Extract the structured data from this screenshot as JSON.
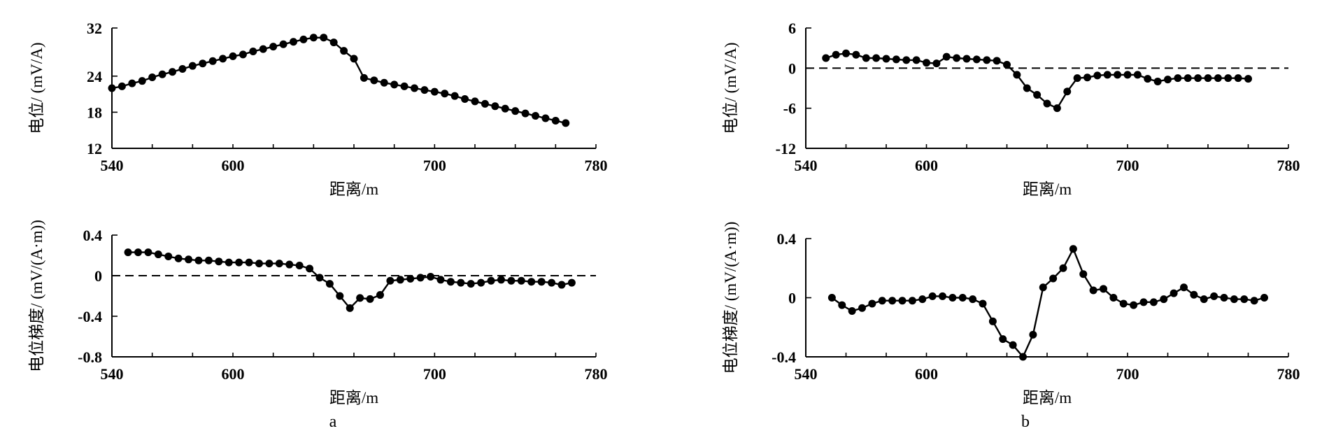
{
  "figure": {
    "panel_labels": [
      "a",
      "b"
    ]
  },
  "chart_data": [
    {
      "id": "a-potential",
      "type": "line",
      "xlabel": "距离/m",
      "ylabel": "电位/ (mV/A)",
      "xlim": [
        540,
        780
      ],
      "ylim": [
        12,
        32
      ],
      "xticks": [
        540,
        600,
        700,
        780
      ],
      "yticks": [
        12,
        18,
        24,
        32
      ],
      "zero_line": false,
      "series": [
        {
          "name": "电位",
          "x": [
            540,
            545,
            550,
            555,
            560,
            565,
            570,
            575,
            580,
            585,
            590,
            595,
            600,
            605,
            610,
            615,
            620,
            625,
            630,
            635,
            640,
            645,
            650,
            655,
            660,
            665,
            670,
            675,
            680,
            685,
            690,
            695,
            700,
            705,
            710,
            715,
            720,
            725,
            730,
            735,
            740,
            745,
            750,
            755,
            760,
            765
          ],
          "y": [
            22.0,
            22.3,
            22.8,
            23.2,
            23.8,
            24.3,
            24.7,
            25.2,
            25.7,
            26.1,
            26.5,
            26.9,
            27.3,
            27.6,
            28.1,
            28.5,
            28.9,
            29.3,
            29.7,
            30.1,
            30.4,
            30.4,
            29.6,
            28.2,
            26.9,
            23.7,
            23.3,
            22.9,
            22.6,
            22.3,
            22.0,
            21.7,
            21.4,
            21.1,
            20.7,
            20.2,
            19.8,
            19.4,
            19.0,
            18.6,
            18.2,
            17.8,
            17.4,
            17.0,
            16.6,
            16.2
          ]
        }
      ]
    },
    {
      "id": "a-gradient",
      "type": "line",
      "xlabel": "距离/m",
      "ylabel": "电位梯度/ (mV/(A·m))",
      "xlim": [
        540,
        780
      ],
      "ylim": [
        -0.8,
        0.4
      ],
      "xticks": [
        540,
        600,
        700,
        780
      ],
      "yticks": [
        -0.8,
        -0.4,
        0,
        0.4
      ],
      "ytick_labels": [
        "-0.8",
        "-0.4",
        "0",
        "0.4"
      ],
      "zero_line": true,
      "series": [
        {
          "name": "电位梯度",
          "x": [
            548,
            553,
            558,
            563,
            568,
            573,
            578,
            583,
            588,
            593,
            598,
            603,
            608,
            613,
            618,
            623,
            628,
            633,
            638,
            643,
            648,
            653,
            658,
            663,
            668,
            673,
            678,
            683,
            688,
            693,
            698,
            703,
            708,
            713,
            718,
            723,
            728,
            733,
            738,
            743,
            748,
            753,
            758,
            763,
            768
          ],
          "y": [
            0.23,
            0.23,
            0.23,
            0.21,
            0.19,
            0.17,
            0.16,
            0.15,
            0.15,
            0.14,
            0.13,
            0.13,
            0.13,
            0.12,
            0.12,
            0.12,
            0.11,
            0.1,
            0.07,
            -0.02,
            -0.08,
            -0.2,
            -0.32,
            -0.22,
            -0.23,
            -0.19,
            -0.05,
            -0.04,
            -0.03,
            -0.02,
            -0.01,
            -0.04,
            -0.06,
            -0.07,
            -0.08,
            -0.07,
            -0.05,
            -0.04,
            -0.05,
            -0.05,
            -0.06,
            -0.06,
            -0.07,
            -0.09,
            -0.07
          ]
        }
      ]
    },
    {
      "id": "b-potential",
      "type": "line",
      "xlabel": "距离/m",
      "ylabel": "电位/ (mV/A)",
      "xlim": [
        540,
        780
      ],
      "ylim": [
        -12,
        6
      ],
      "xticks": [
        540,
        600,
        700,
        780
      ],
      "yticks": [
        -12,
        -6,
        0,
        6
      ],
      "zero_line": true,
      "series": [
        {
          "name": "电位",
          "x": [
            550,
            555,
            560,
            565,
            570,
            575,
            580,
            585,
            590,
            595,
            600,
            605,
            610,
            615,
            620,
            625,
            630,
            635,
            640,
            645,
            650,
            655,
            660,
            665,
            670,
            675,
            680,
            685,
            690,
            695,
            700,
            705,
            710,
            715,
            720,
            725,
            730,
            735,
            740,
            745,
            750,
            755,
            760
          ],
          "y": [
            1.5,
            2.0,
            2.2,
            2.0,
            1.5,
            1.5,
            1.4,
            1.3,
            1.2,
            1.2,
            0.8,
            0.7,
            1.7,
            1.5,
            1.4,
            1.3,
            1.2,
            1.1,
            0.5,
            -1.0,
            -3.0,
            -4.0,
            -5.3,
            -6.0,
            -3.5,
            -1.5,
            -1.4,
            -1.1,
            -1.0,
            -1.0,
            -1.0,
            -1.0,
            -1.6,
            -2.0,
            -1.7,
            -1.5,
            -1.5,
            -1.5,
            -1.5,
            -1.5,
            -1.5,
            -1.5,
            -1.6
          ]
        }
      ]
    },
    {
      "id": "b-gradient",
      "type": "line",
      "xlabel": "距离/m",
      "ylabel": "电位梯度/ (mV/(A·m))",
      "xlim": [
        540,
        780
      ],
      "ylim": [
        -0.4,
        0.4
      ],
      "xticks": [
        540,
        600,
        700,
        780
      ],
      "yticks": [
        -0.4,
        0,
        0.4
      ],
      "ytick_labels": [
        "-0.4",
        "0",
        "0.4"
      ],
      "zero_line": false,
      "series": [
        {
          "name": "电位梯度",
          "x": [
            553,
            558,
            563,
            568,
            573,
            578,
            583,
            588,
            593,
            598,
            603,
            608,
            613,
            618,
            623,
            628,
            633,
            638,
            643,
            648,
            653,
            658,
            663,
            668,
            673,
            678,
            683,
            688,
            693,
            698,
            703,
            708,
            713,
            718,
            723,
            728,
            733,
            738,
            743,
            748,
            753,
            758,
            763,
            768
          ],
          "y": [
            0.0,
            -0.05,
            -0.09,
            -0.07,
            -0.04,
            -0.02,
            -0.02,
            -0.02,
            -0.02,
            -0.01,
            0.01,
            0.01,
            0.0,
            0.0,
            -0.01,
            -0.04,
            -0.16,
            -0.28,
            -0.32,
            -0.4,
            -0.25,
            0.07,
            0.13,
            0.2,
            0.33,
            0.16,
            0.05,
            0.06,
            0.0,
            -0.04,
            -0.05,
            -0.03,
            -0.03,
            -0.01,
            0.03,
            0.07,
            0.02,
            -0.01,
            0.01,
            0.0,
            -0.01,
            -0.01,
            -0.02,
            0.0
          ]
        }
      ]
    }
  ]
}
